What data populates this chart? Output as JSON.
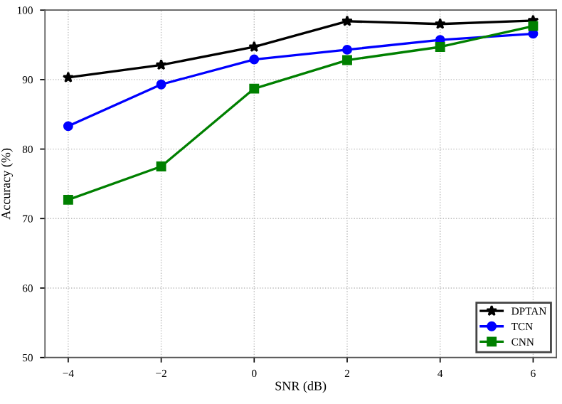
{
  "chart_data": {
    "type": "line",
    "xlabel": "SNR (dB)",
    "ylabel": "Accuracy (%)",
    "x": [
      -4,
      -2,
      0,
      2,
      4,
      6
    ],
    "series": [
      {
        "name": "DPTAN",
        "color": "#000000",
        "marker": "star",
        "values": [
          90.3,
          92.1,
          94.7,
          98.4,
          98.0,
          98.5
        ]
      },
      {
        "name": "TCN",
        "color": "#0000ff",
        "marker": "circle",
        "values": [
          83.3,
          89.3,
          92.9,
          94.3,
          95.7,
          96.6
        ]
      },
      {
        "name": "CNN",
        "color": "#008000",
        "marker": "square",
        "values": [
          72.7,
          77.5,
          88.7,
          92.8,
          94.7,
          97.7
        ]
      }
    ],
    "xlim": [
      -4.5,
      6.5
    ],
    "xticks": [
      {
        "value": -4,
        "label": "−4"
      },
      {
        "value": -2,
        "label": "−2"
      },
      0,
      2,
      4,
      6
    ],
    "ylim": [
      50,
      100
    ],
    "yticks": [
      50,
      60,
      70,
      80,
      90,
      100
    ],
    "grid": true,
    "line_style": "solid",
    "legend": "bottom right"
  }
}
